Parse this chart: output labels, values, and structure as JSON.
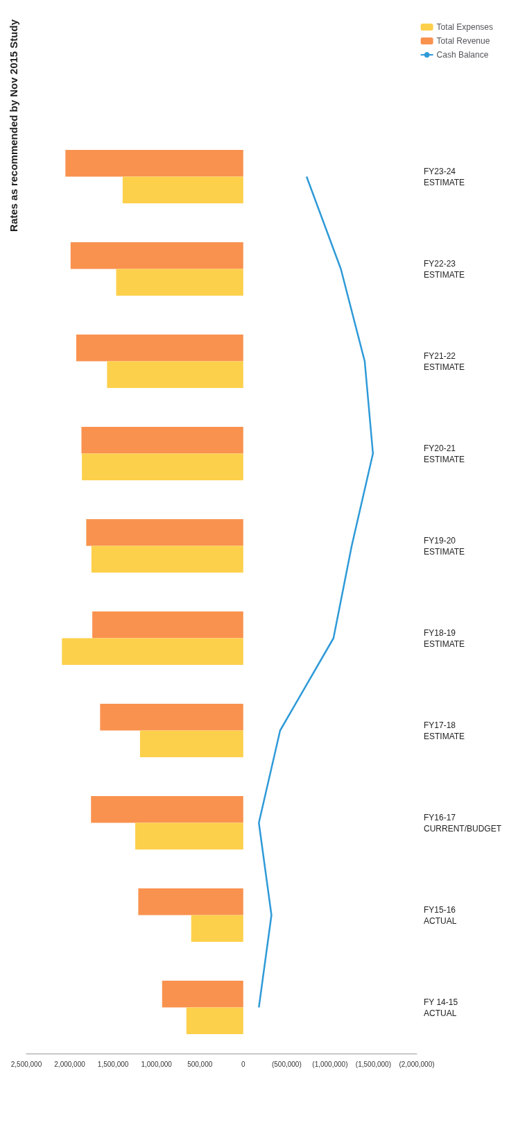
{
  "chart_data": {
    "type": "bar",
    "orientation": "horizontal",
    "title": "Rates as recommended by Nov 2015 Study",
    "categories": [
      "FY23-24\nESTIMATE",
      "FY22-23\nESTIMATE",
      "FY21-22\nESTIMATE",
      "FY20-21\nESTIMATE",
      "FY19-20\nESTIMATE",
      "FY18-19\nESTIMATE",
      "FY17-18\nESTIMATE",
      "FY16-17\nCURRENT/BUDGET",
      "FY15-16\nACTUAL",
      "FY 14-15\nACTUAL"
    ],
    "series": [
      {
        "name": "Total Expenses",
        "color": "#fdd04c",
        "values": [
          1390000,
          1465000,
          1570000,
          1860000,
          1750000,
          2090000,
          1190000,
          1245000,
          600000,
          655000
        ]
      },
      {
        "name": "Total Revenue",
        "color": "#f9924f",
        "values": [
          2050000,
          1990000,
          1925000,
          1865000,
          1810000,
          1740000,
          1650000,
          1755000,
          1210000,
          935000
        ]
      },
      {
        "name": "Cash Balance",
        "type": "line",
        "color": "#2e9ad8",
        "values": [
          -730000,
          -1125000,
          -1400000,
          -1495000,
          -1250000,
          -1040000,
          -425000,
          -180000,
          -325000,
          -180000
        ]
      }
    ],
    "xlim": [
      2500000,
      -2000000
    ],
    "xticks": [
      {
        "value": 2500000,
        "label": "2,500,000"
      },
      {
        "value": 2000000,
        "label": "2,000,000"
      },
      {
        "value": 1500000,
        "label": "1,500,000"
      },
      {
        "value": 1000000,
        "label": "1,000,000"
      },
      {
        "value": 500000,
        "label": "500,000"
      },
      0,
      {
        "value": -500000,
        "label": "(500,000)"
      },
      {
        "value": -1000000,
        "label": "(1,000,000)"
      },
      {
        "value": -1500000,
        "label": "(1,500,000)"
      },
      {
        "value": -2000000,
        "label": "(2,000,000)"
      }
    ],
    "grid": false,
    "legend": "top right",
    "marker": "none"
  }
}
